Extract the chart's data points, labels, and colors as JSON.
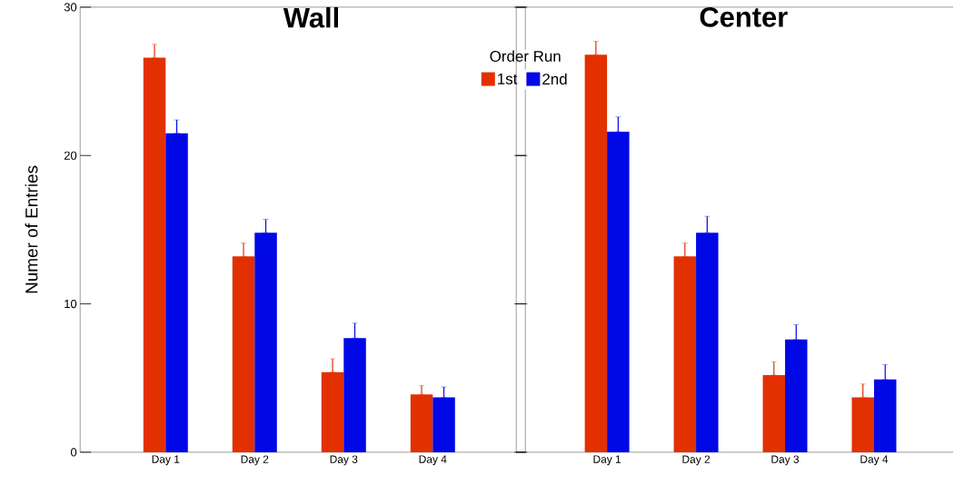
{
  "chart_data": [
    {
      "type": "bar",
      "title": "Wall",
      "ylabel": "Numer of Entries",
      "legend_title": "Order Run",
      "legend": "top right",
      "categories": [
        "Day 1",
        "Day 2",
        "Day 3",
        "Day 4"
      ],
      "ylim": [
        0,
        30
      ],
      "yticks": [
        0,
        10,
        20,
        30
      ],
      "series": [
        {
          "name": "1st",
          "color": "#e23000",
          "values": [
            26.6,
            13.2,
            5.4,
            3.9
          ],
          "errors": [
            [
              26.6,
              27.5
            ],
            [
              13.2,
              14.1
            ],
            [
              5.4,
              6.3
            ],
            [
              3.9,
              4.5
            ]
          ]
        },
        {
          "name": "2nd",
          "color": "#0008e6",
          "values": [
            21.5,
            14.8,
            7.7,
            3.7
          ],
          "errors": [
            [
              21.5,
              22.4
            ],
            [
              14.8,
              15.7
            ],
            [
              7.7,
              8.7
            ],
            [
              3.7,
              4.4
            ]
          ]
        }
      ]
    },
    {
      "type": "bar",
      "title": "Center",
      "tick_labels": "x",
      "categories": [
        "Day 1",
        "Day 2",
        "Day 3",
        "Day 4"
      ],
      "ylim": [
        0,
        30
      ],
      "yticks": [
        0,
        10,
        20,
        30
      ],
      "series": [
        {
          "color": "#e23000",
          "values": [
            26.8,
            13.2,
            5.2,
            3.7
          ],
          "errors": [
            [
              26.8,
              27.7
            ],
            [
              13.2,
              14.1
            ],
            [
              5.2,
              6.1
            ],
            [
              3.7,
              4.6
            ]
          ]
        },
        {
          "color": "#0008e6",
          "values": [
            21.6,
            14.8,
            7.6,
            4.9
          ],
          "errors": [
            [
              21.6,
              22.6
            ],
            [
              14.8,
              15.9
            ],
            [
              7.6,
              8.6
            ],
            [
              4.9,
              5.9
            ]
          ]
        }
      ]
    }
  ]
}
